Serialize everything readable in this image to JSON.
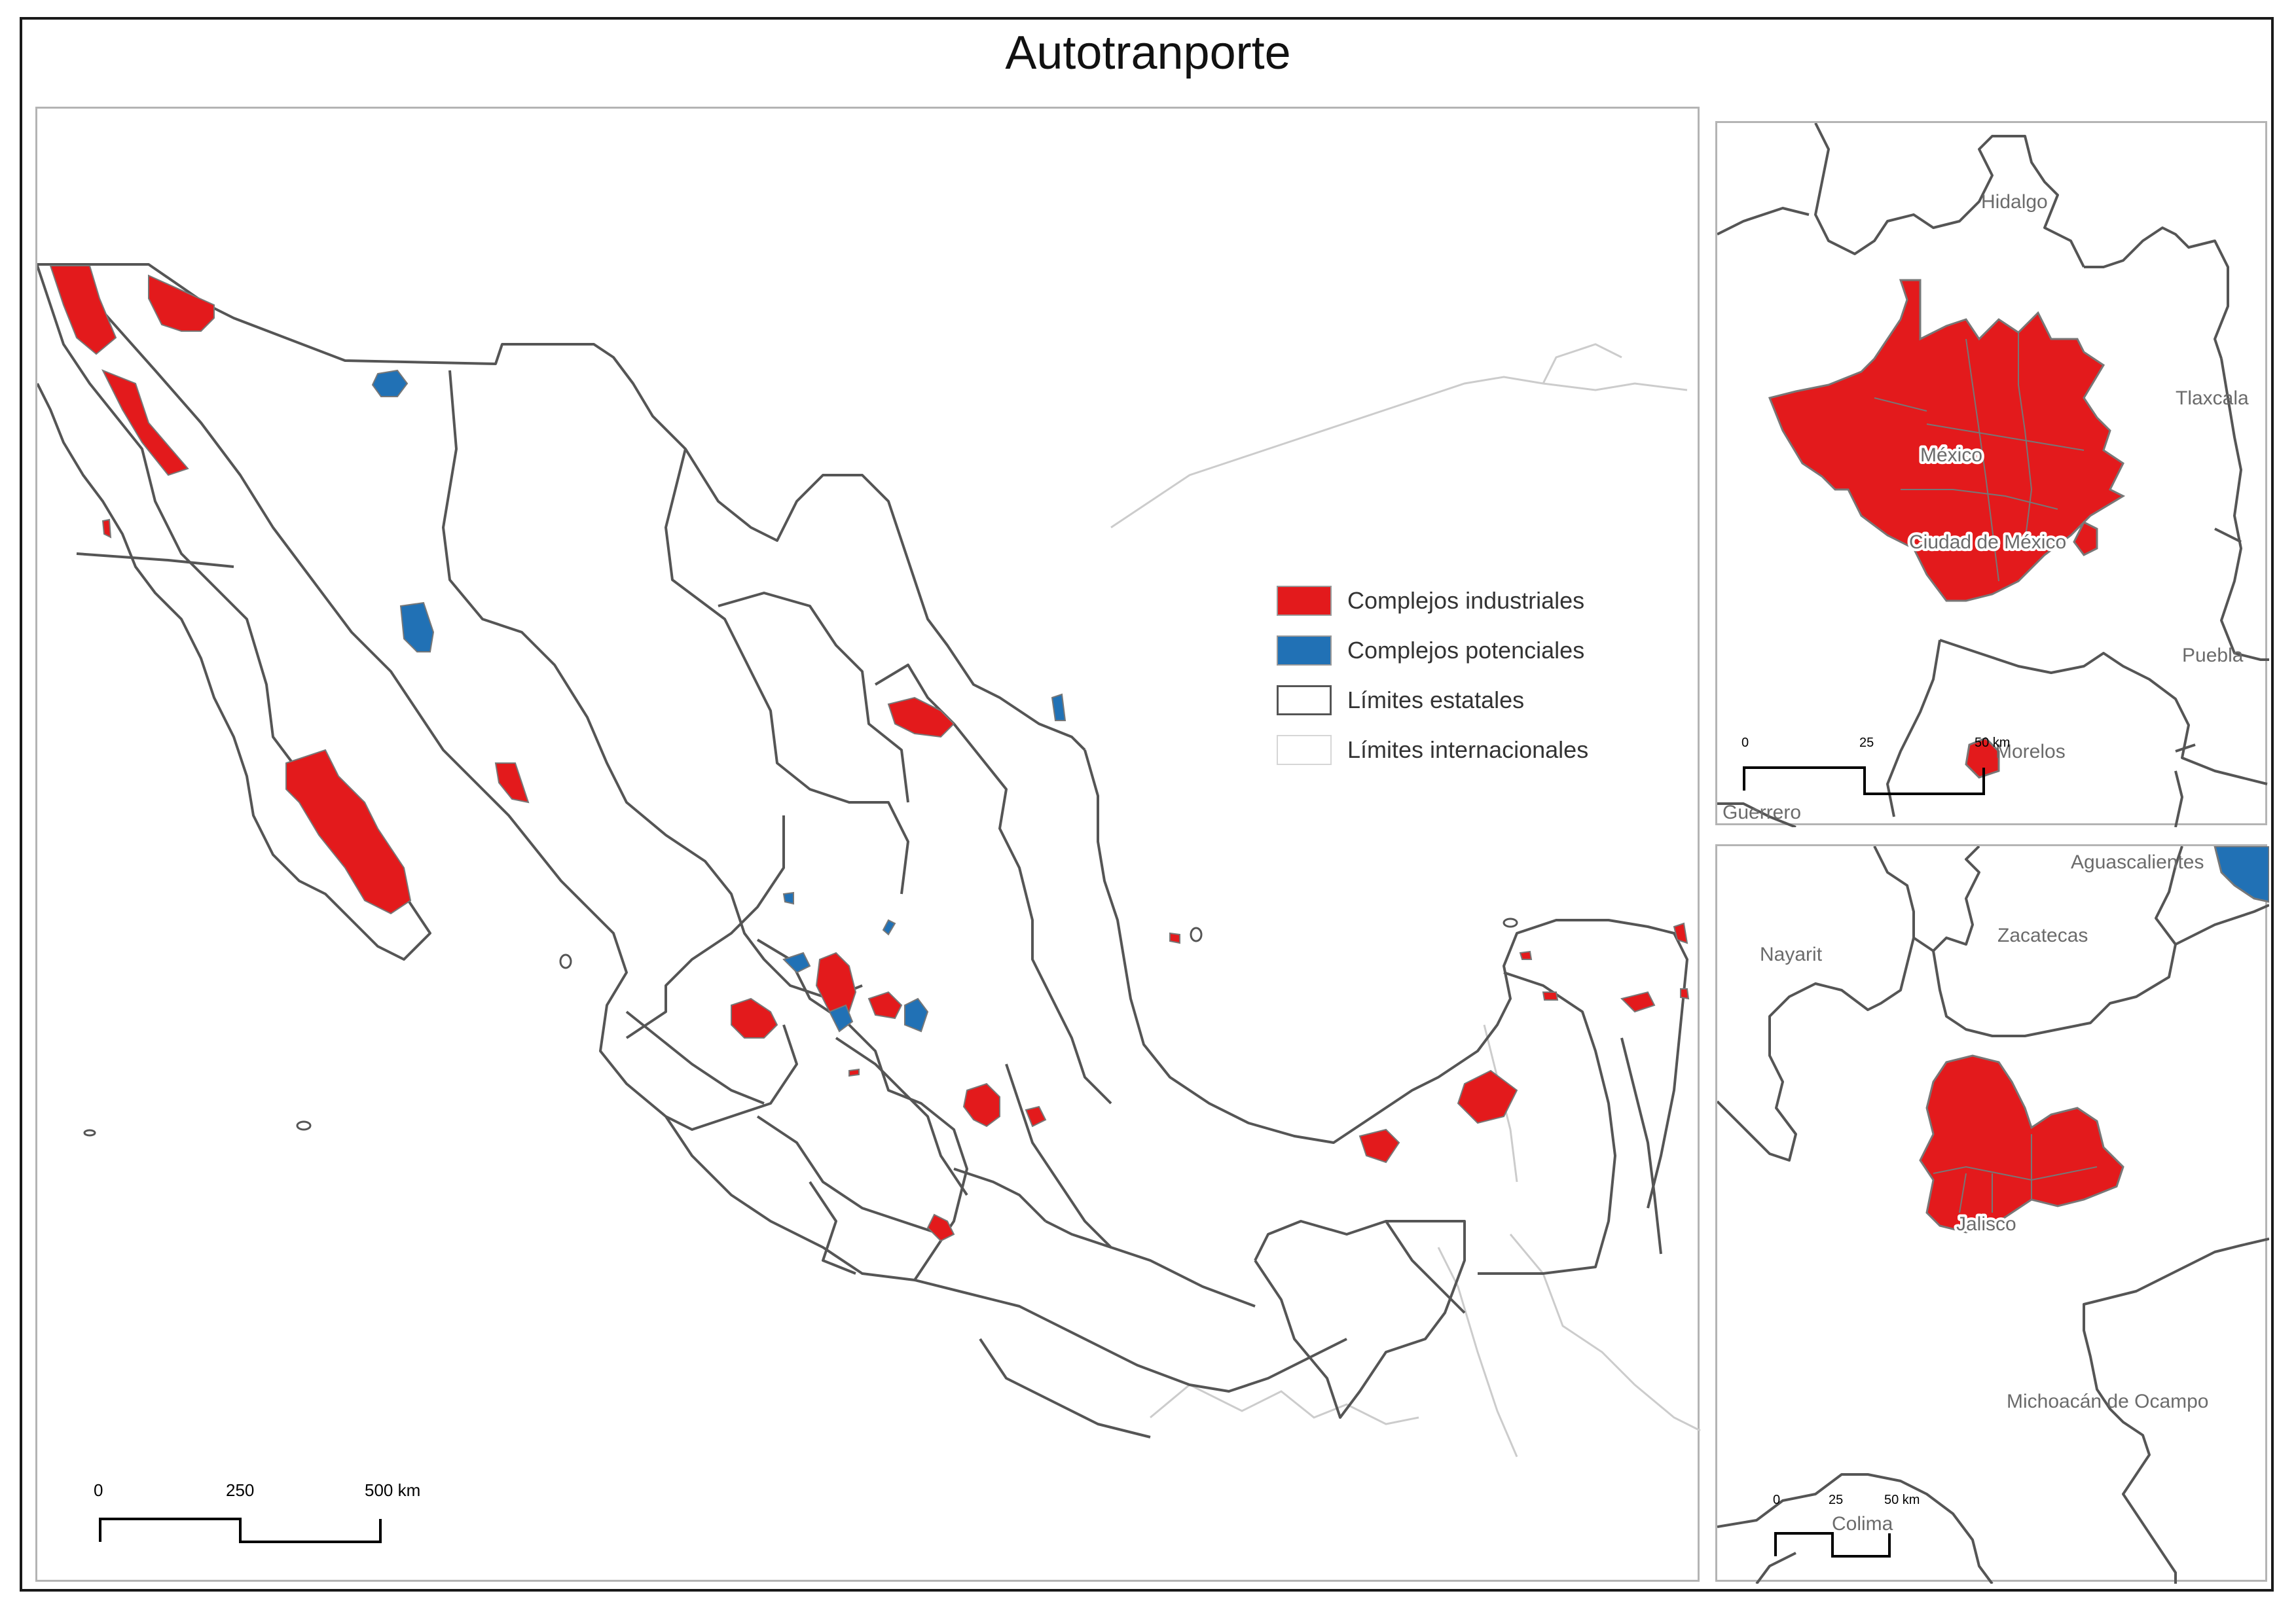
{
  "title": "Autotranporte",
  "colors": {
    "industrial": "#e31a1c",
    "potential": "#2171b5",
    "state_border": "#555555",
    "international_border": "#cccccc",
    "label": "#6b6b6b"
  },
  "legend": [
    {
      "label": "Complejos industriales",
      "swatch": "industrial"
    },
    {
      "label": "Complejos potenciales",
      "swatch": "potential"
    },
    {
      "label": "Límites estatales",
      "swatch": "state"
    },
    {
      "label": "Límites internacionales",
      "swatch": "international"
    }
  ],
  "main_scale": {
    "ticks": [
      "0",
      "250",
      "500 km"
    ]
  },
  "inset_cdmx": {
    "labels": [
      "Hidalgo",
      "Tlaxcala",
      "México",
      "Ciudad de México",
      "Puebla",
      "Morelos",
      "Guerrero"
    ],
    "scale": {
      "ticks": [
        "0",
        "25",
        "50 km"
      ]
    }
  },
  "inset_jalisco": {
    "labels": [
      "Aguascalientes",
      "Zacatecas",
      "Nayarit",
      "Jalisco",
      "Michoacán de Ocampo",
      "Colima"
    ],
    "scale": {
      "ticks": [
        "0",
        "25",
        "50 km"
      ]
    }
  }
}
